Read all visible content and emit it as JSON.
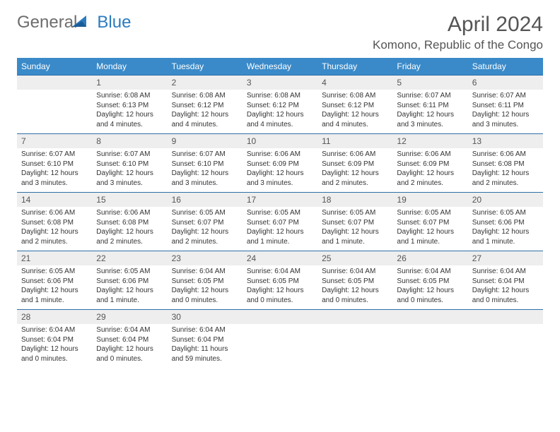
{
  "logo": {
    "part1": "General",
    "part2": "Blue"
  },
  "title": "April 2024",
  "location": "Komono, Republic of the Congo",
  "colors": {
    "header_bg": "#3a8ac9",
    "header_text": "#ffffff",
    "daynum_bg": "#eeeeee",
    "border_top": "#2f6fa8",
    "title_color": "#555555",
    "body_text": "#333333",
    "logo_gray": "#6d6d6d",
    "logo_blue": "#2c7bbf"
  },
  "weekdays": [
    "Sunday",
    "Monday",
    "Tuesday",
    "Wednesday",
    "Thursday",
    "Friday",
    "Saturday"
  ],
  "weeks": [
    [
      null,
      {
        "n": "1",
        "sr": "6:08 AM",
        "ss": "6:13 PM",
        "dl": "12 hours and 4 minutes."
      },
      {
        "n": "2",
        "sr": "6:08 AM",
        "ss": "6:12 PM",
        "dl": "12 hours and 4 minutes."
      },
      {
        "n": "3",
        "sr": "6:08 AM",
        "ss": "6:12 PM",
        "dl": "12 hours and 4 minutes."
      },
      {
        "n": "4",
        "sr": "6:08 AM",
        "ss": "6:12 PM",
        "dl": "12 hours and 4 minutes."
      },
      {
        "n": "5",
        "sr": "6:07 AM",
        "ss": "6:11 PM",
        "dl": "12 hours and 3 minutes."
      },
      {
        "n": "6",
        "sr": "6:07 AM",
        "ss": "6:11 PM",
        "dl": "12 hours and 3 minutes."
      }
    ],
    [
      {
        "n": "7",
        "sr": "6:07 AM",
        "ss": "6:10 PM",
        "dl": "12 hours and 3 minutes."
      },
      {
        "n": "8",
        "sr": "6:07 AM",
        "ss": "6:10 PM",
        "dl": "12 hours and 3 minutes."
      },
      {
        "n": "9",
        "sr": "6:07 AM",
        "ss": "6:10 PM",
        "dl": "12 hours and 3 minutes."
      },
      {
        "n": "10",
        "sr": "6:06 AM",
        "ss": "6:09 PM",
        "dl": "12 hours and 3 minutes."
      },
      {
        "n": "11",
        "sr": "6:06 AM",
        "ss": "6:09 PM",
        "dl": "12 hours and 2 minutes."
      },
      {
        "n": "12",
        "sr": "6:06 AM",
        "ss": "6:09 PM",
        "dl": "12 hours and 2 minutes."
      },
      {
        "n": "13",
        "sr": "6:06 AM",
        "ss": "6:08 PM",
        "dl": "12 hours and 2 minutes."
      }
    ],
    [
      {
        "n": "14",
        "sr": "6:06 AM",
        "ss": "6:08 PM",
        "dl": "12 hours and 2 minutes."
      },
      {
        "n": "15",
        "sr": "6:06 AM",
        "ss": "6:08 PM",
        "dl": "12 hours and 2 minutes."
      },
      {
        "n": "16",
        "sr": "6:05 AM",
        "ss": "6:07 PM",
        "dl": "12 hours and 2 minutes."
      },
      {
        "n": "17",
        "sr": "6:05 AM",
        "ss": "6:07 PM",
        "dl": "12 hours and 1 minute."
      },
      {
        "n": "18",
        "sr": "6:05 AM",
        "ss": "6:07 PM",
        "dl": "12 hours and 1 minute."
      },
      {
        "n": "19",
        "sr": "6:05 AM",
        "ss": "6:07 PM",
        "dl": "12 hours and 1 minute."
      },
      {
        "n": "20",
        "sr": "6:05 AM",
        "ss": "6:06 PM",
        "dl": "12 hours and 1 minute."
      }
    ],
    [
      {
        "n": "21",
        "sr": "6:05 AM",
        "ss": "6:06 PM",
        "dl": "12 hours and 1 minute."
      },
      {
        "n": "22",
        "sr": "6:05 AM",
        "ss": "6:06 PM",
        "dl": "12 hours and 1 minute."
      },
      {
        "n": "23",
        "sr": "6:04 AM",
        "ss": "6:05 PM",
        "dl": "12 hours and 0 minutes."
      },
      {
        "n": "24",
        "sr": "6:04 AM",
        "ss": "6:05 PM",
        "dl": "12 hours and 0 minutes."
      },
      {
        "n": "25",
        "sr": "6:04 AM",
        "ss": "6:05 PM",
        "dl": "12 hours and 0 minutes."
      },
      {
        "n": "26",
        "sr": "6:04 AM",
        "ss": "6:05 PM",
        "dl": "12 hours and 0 minutes."
      },
      {
        "n": "27",
        "sr": "6:04 AM",
        "ss": "6:04 PM",
        "dl": "12 hours and 0 minutes."
      }
    ],
    [
      {
        "n": "28",
        "sr": "6:04 AM",
        "ss": "6:04 PM",
        "dl": "12 hours and 0 minutes."
      },
      {
        "n": "29",
        "sr": "6:04 AM",
        "ss": "6:04 PM",
        "dl": "12 hours and 0 minutes."
      },
      {
        "n": "30",
        "sr": "6:04 AM",
        "ss": "6:04 PM",
        "dl": "11 hours and 59 minutes."
      },
      null,
      null,
      null,
      null
    ]
  ],
  "labels": {
    "sunrise": "Sunrise:",
    "sunset": "Sunset:",
    "daylight": "Daylight:"
  }
}
